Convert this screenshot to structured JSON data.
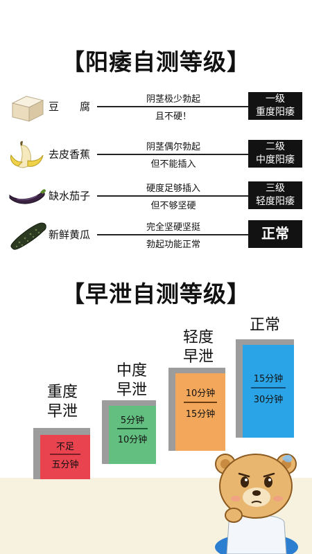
{
  "ed_section": {
    "title": "【阳痿自测等级】",
    "rows": [
      {
        "food": "豆　　腐",
        "icon": "tofu-icon",
        "desc_top": "阴茎极少勃起",
        "desc_bottom": "且不硬！",
        "grade_line1": "一级",
        "grade_line2": "重度阳痿"
      },
      {
        "food": "去皮香蕉",
        "icon": "peeled-banana-icon",
        "desc_top": "阴茎偶尔勃起",
        "desc_bottom": "但不能插入",
        "grade_line1": "二级",
        "grade_line2": "中度阳痿"
      },
      {
        "food": "缺水茄子",
        "icon": "eggplant-icon",
        "desc_top": "硬度足够插入",
        "desc_bottom": "但不够坚硬",
        "grade_line1": "三级",
        "grade_line2": "轻度阳痿"
      },
      {
        "food": "新鲜黄瓜",
        "icon": "cucumber-icon",
        "desc_top": "完全坚硬坚挺",
        "desc_bottom": "勃起功能正常",
        "grade_line1": "正常",
        "grade_line2": ""
      }
    ]
  },
  "pe_section": {
    "title": "【早泄自测等级】",
    "bars": [
      {
        "label_line1": "重度",
        "label_line2": "早泄",
        "top_text": "不足",
        "bottom_text": "五分钟",
        "color": "#e8434f"
      },
      {
        "label_line1": "中度",
        "label_line2": "早泄",
        "top_text": "5分钟",
        "bottom_text": "10分钟",
        "color": "#63bf80"
      },
      {
        "label_line1": "轻度",
        "label_line2": "早泄",
        "top_text": "10分钟",
        "bottom_text": "15分钟",
        "color": "#f2a75a"
      },
      {
        "label_line1": "正常",
        "label_line2": "",
        "top_text": "15分钟",
        "bottom_text": "30分钟",
        "color": "#2aa4e6"
      }
    ]
  },
  "colors": {
    "grade_box": "#121212",
    "bar_frame": "#9c9c9c",
    "floor": "#f7f2df",
    "bear": "#e9b66f"
  },
  "decor": {
    "mascot": "bear-mascot-icon"
  }
}
